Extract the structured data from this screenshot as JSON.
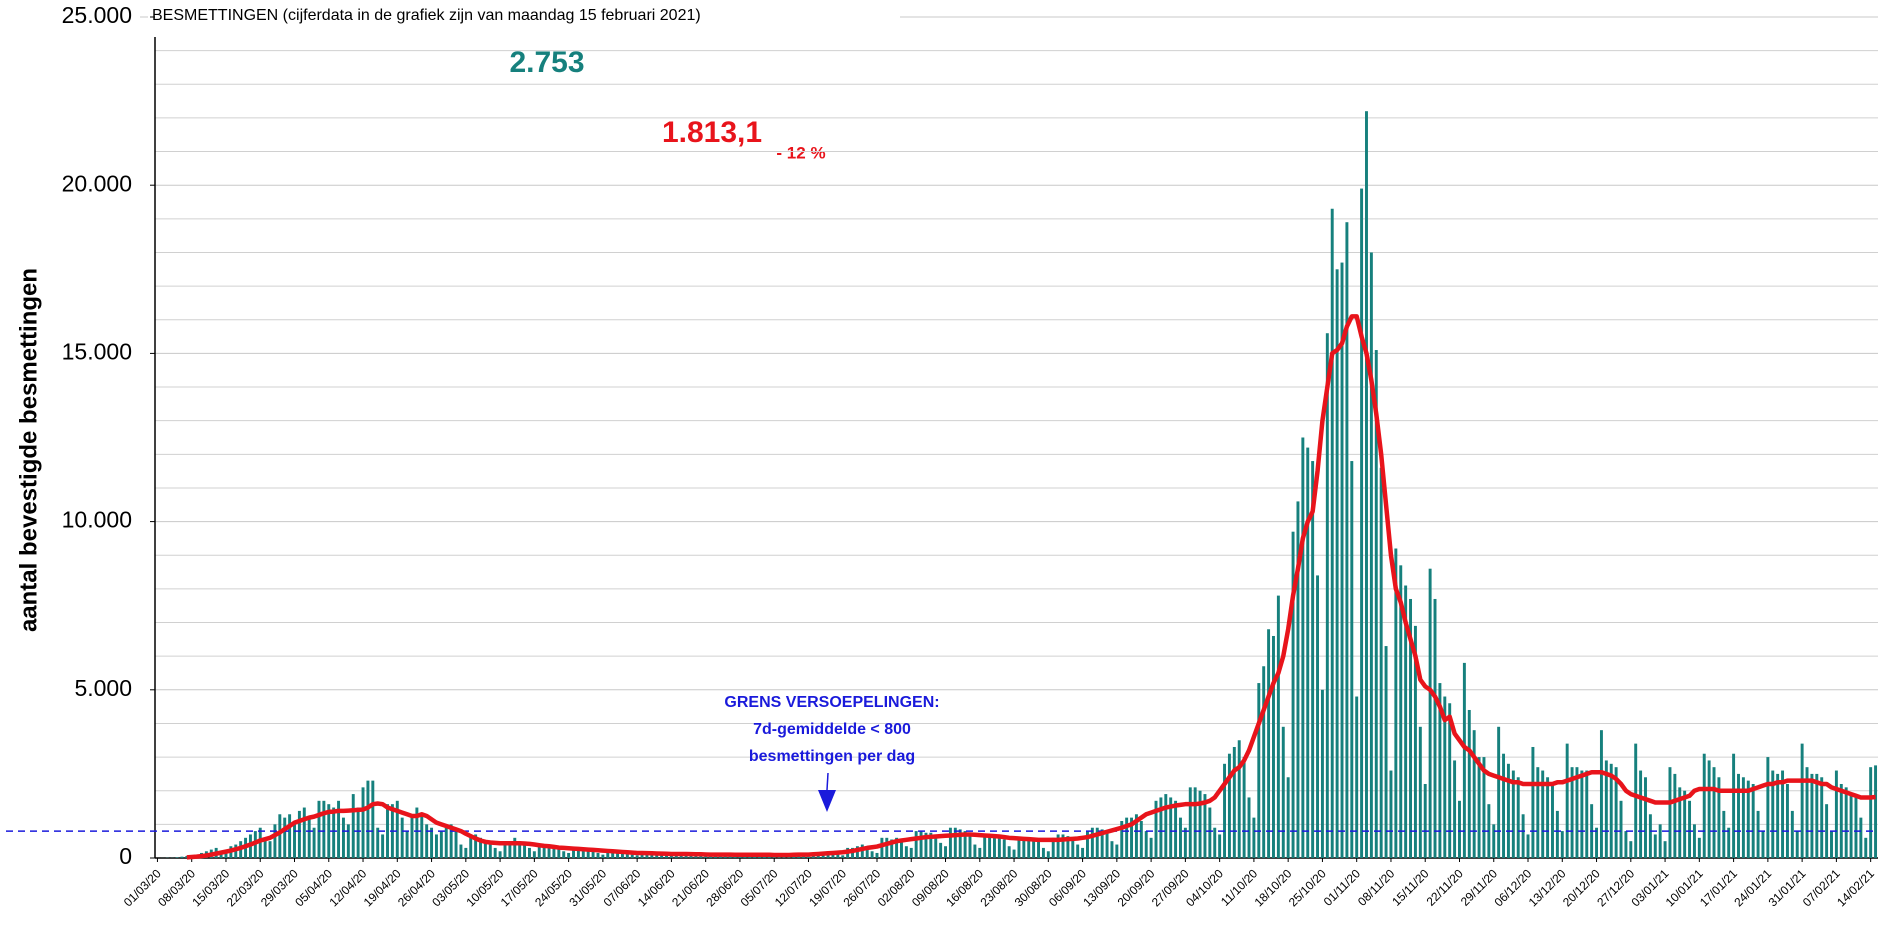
{
  "chart_data": {
    "type": "bar",
    "title": "BESMETTINGEN (cijferdata in de grafiek zijn van maandag 15 februari 2021)",
    "y_label": "aantal bevestigde besmettingen",
    "ylim": [
      0,
      25000
    ],
    "yticks": [
      0,
      {
        "value": 5000,
        "label": "5.000"
      },
      {
        "value": 10000,
        "label": "10.000"
      },
      {
        "value": 15000,
        "label": "15.000"
      },
      {
        "value": 20000,
        "label": "20.000"
      },
      {
        "value": 25000,
        "label": "25.000"
      }
    ],
    "y_minor_ticks": [
      1000,
      2000,
      3000,
      4000,
      6000,
      7000,
      8000,
      9000,
      11000,
      12000,
      13000,
      14000,
      16000,
      17000,
      18000,
      19000,
      21000,
      22000,
      23000,
      24000
    ],
    "grid": true,
    "highlights": {
      "cases": "2.753",
      "average": "1.813,1",
      "change": "- 12 %"
    },
    "threshold": {
      "value": 800,
      "color": "#1a1adb",
      "label": [
        "GRENS VERSOEPELINGEN:",
        "7d-gemiddelde < 800",
        "besmettingen per dag"
      ]
    },
    "categories": [
      "01/03/20",
      null,
      null,
      null,
      null,
      null,
      null,
      "08/03/20",
      null,
      null,
      null,
      null,
      null,
      null,
      "15/03/20",
      null,
      null,
      null,
      null,
      null,
      null,
      "22/03/20",
      null,
      null,
      null,
      null,
      null,
      null,
      "29/03/20",
      null,
      null,
      null,
      null,
      null,
      null,
      "05/04/20",
      null,
      null,
      null,
      null,
      null,
      null,
      "12/04/20",
      null,
      null,
      null,
      null,
      null,
      null,
      "19/04/20",
      null,
      null,
      null,
      null,
      null,
      null,
      "26/04/20",
      null,
      null,
      null,
      null,
      null,
      null,
      "03/05/20",
      null,
      null,
      null,
      null,
      null,
      null,
      "10/05/20",
      null,
      null,
      null,
      null,
      null,
      null,
      "17/05/20",
      null,
      null,
      null,
      null,
      null,
      null,
      "24/05/20",
      null,
      null,
      null,
      null,
      null,
      null,
      "31/05/20",
      null,
      null,
      null,
      null,
      null,
      null,
      "07/06/20",
      null,
      null,
      null,
      null,
      null,
      null,
      "14/06/20",
      null,
      null,
      null,
      null,
      null,
      null,
      "21/06/20",
      null,
      null,
      null,
      null,
      null,
      null,
      "28/06/20",
      null,
      null,
      null,
      null,
      null,
      null,
      "05/07/20",
      null,
      null,
      null,
      null,
      null,
      null,
      "12/07/20",
      null,
      null,
      null,
      null,
      null,
      null,
      "19/07/20",
      null,
      null,
      null,
      null,
      null,
      null,
      "26/07/20",
      null,
      null,
      null,
      null,
      null,
      null,
      "02/08/20",
      null,
      null,
      null,
      null,
      null,
      null,
      "09/08/20",
      null,
      null,
      null,
      null,
      null,
      null,
      "16/08/20",
      null,
      null,
      null,
      null,
      null,
      null,
      "23/08/20",
      null,
      null,
      null,
      null,
      null,
      null,
      "30/08/20",
      null,
      null,
      null,
      null,
      null,
      null,
      "06/09/20",
      null,
      null,
      null,
      null,
      null,
      null,
      "13/09/20",
      null,
      null,
      null,
      null,
      null,
      null,
      "20/09/20",
      null,
      null,
      null,
      null,
      null,
      null,
      "27/09/20",
      null,
      null,
      null,
      null,
      null,
      null,
      "04/10/20",
      null,
      null,
      null,
      null,
      null,
      null,
      "11/10/20",
      null,
      null,
      null,
      null,
      null,
      null,
      "18/10/20",
      null,
      null,
      null,
      null,
      null,
      null,
      "25/10/20",
      null,
      null,
      null,
      null,
      null,
      null,
      "01/11/20",
      null,
      null,
      null,
      null,
      null,
      null,
      "08/11/20",
      null,
      null,
      null,
      null,
      null,
      null,
      "15/11/20",
      null,
      null,
      null,
      null,
      null,
      null,
      "22/11/20",
      null,
      null,
      null,
      null,
      null,
      null,
      "29/11/20",
      null,
      null,
      null,
      null,
      null,
      null,
      "06/12/20",
      null,
      null,
      null,
      null,
      null,
      null,
      "13/12/20",
      null,
      null,
      null,
      null,
      null,
      null,
      "20/12/20",
      null,
      null,
      null,
      null,
      null,
      null,
      "27/12/20",
      null,
      null,
      null,
      null,
      null,
      null,
      "03/01/21",
      null,
      null,
      null,
      null,
      null,
      null,
      "10/01/21",
      null,
      null,
      null,
      null,
      null,
      null,
      "17/01/21",
      null,
      null,
      null,
      null,
      null,
      null,
      "24/01/21",
      null,
      null,
      null,
      null,
      null,
      null,
      "31/01/21",
      null,
      null,
      null,
      null,
      null,
      null,
      "07/02/21",
      null,
      null,
      null,
      null,
      null,
      null,
      "14/02/21",
      null
    ],
    "series": [
      {
        "type": "bar",
        "color": "#16807d",
        "values": [
          0,
          2,
          8,
          5,
          20,
          40,
          60,
          80,
          100,
          150,
          200,
          250,
          300,
          200,
          180,
          350,
          400,
          500,
          600,
          700,
          800,
          900,
          600,
          500,
          1000,
          1300,
          1200,
          1300,
          1100,
          1400,
          1500,
          1200,
          900,
          1700,
          1700,
          1600,
          1500,
          1700,
          1200,
          1000,
          1900,
          1500,
          2100,
          2300,
          2300,
          900,
          700,
          1600,
          1600,
          1700,
          1200,
          800,
          1200,
          1500,
          1300,
          1000,
          900,
          700,
          800,
          1000,
          1000,
          800,
          400,
          300,
          700,
          700,
          600,
          500,
          400,
          300,
          200,
          500,
          500,
          600,
          500,
          400,
          300,
          200,
          400,
          400,
          400,
          300,
          300,
          200,
          150,
          300,
          300,
          300,
          250,
          200,
          150,
          100,
          250,
          250,
          200,
          200,
          150,
          100,
          80,
          200,
          200,
          150,
          150,
          120,
          80,
          60,
          150,
          150,
          130,
          130,
          100,
          70,
          50,
          120,
          120,
          110,
          110,
          90,
          60,
          40,
          100,
          100,
          100,
          100,
          90,
          60,
          40,
          120,
          120,
          120,
          110,
          90,
          60,
          40,
          150,
          150,
          150,
          200,
          180,
          120,
          80,
          300,
          300,
          350,
          400,
          350,
          200,
          150,
          600,
          600,
          550,
          600,
          500,
          350,
          300,
          800,
          800,
          750,
          750,
          700,
          450,
          350,
          900,
          900,
          850,
          800,
          700,
          400,
          300,
          700,
          700,
          650,
          600,
          550,
          350,
          250,
          600,
          600,
          600,
          550,
          500,
          300,
          200,
          600,
          700,
          700,
          650,
          600,
          400,
          300,
          800,
          900,
          900,
          850,
          800,
          500,
          400,
          1100,
          1200,
          1200,
          1300,
          1100,
          800,
          600,
          1700,
          1800,
          1900,
          1800,
          1700,
          1200,
          900,
          2100,
          2100,
          2000,
          1900,
          1500,
          900,
          700,
          2800,
          3100,
          3300,
          3500,
          3000,
          1800,
          1200,
          5200,
          5700,
          6800,
          6600,
          7800,
          3900,
          2400,
          9700,
          10600,
          12500,
          12200,
          11800,
          8400,
          5000,
          15600,
          19300,
          17500,
          17700,
          18900,
          11800,
          4800,
          19900,
          22200,
          18000,
          15100,
          11600,
          6300,
          2600,
          9200,
          8700,
          8100,
          7700,
          6900,
          3900,
          2200,
          8600,
          7700,
          5200,
          4800,
          4600,
          2900,
          1700,
          5800,
          4400,
          3800,
          3000,
          3000,
          1600,
          1000,
          3900,
          3100,
          2800,
          2600,
          2400,
          1300,
          700,
          3300,
          2700,
          2600,
          2400,
          2200,
          1400,
          800,
          3400,
          2700,
          2700,
          2600,
          2600,
          1600,
          900,
          3800,
          2900,
          2800,
          2700,
          1700,
          800,
          500,
          3400,
          2600,
          2400,
          1300,
          700,
          1000,
          500,
          2700,
          2500,
          2100,
          2000,
          1700,
          1000,
          600,
          3100,
          2900,
          2700,
          2400,
          1400,
          900,
          3100,
          2500,
          2400,
          2300,
          2200,
          1400,
          800,
          3000,
          2600,
          2500,
          2600,
          2200,
          1400,
          800,
          3400,
          2700,
          2500,
          2500,
          2400,
          1600,
          800,
          2600,
          2200,
          2100,
          1900,
          1800,
          1200,
          600,
          2700,
          2753
        ]
      },
      {
        "type": "line",
        "color": "#e8141b",
        "values": [
          null,
          null,
          null,
          null,
          null,
          null,
          20,
          30,
          40,
          55,
          75,
          100,
          130,
          160,
          190,
          220,
          260,
          300,
          350,
          400,
          460,
          520,
          560,
          600,
          680,
          760,
          860,
          950,
          1050,
          1100,
          1150,
          1200,
          1230,
          1280,
          1330,
          1370,
          1380,
          1400,
          1400,
          1410,
          1420,
          1430,
          1440,
          1500,
          1600,
          1620,
          1600,
          1500,
          1450,
          1400,
          1350,
          1300,
          1250,
          1250,
          1300,
          1250,
          1150,
          1050,
          1000,
          950,
          900,
          850,
          800,
          720,
          650,
          580,
          520,
          480,
          460,
          450,
          440,
          440,
          440,
          440,
          440,
          430,
          420,
          400,
          380,
          360,
          350,
          330,
          310,
          300,
          290,
          280,
          270,
          260,
          250,
          240,
          230,
          220,
          210,
          200,
          190,
          180,
          170,
          160,
          150,
          150,
          145,
          140,
          135,
          130,
          125,
          120,
          120,
          120,
          120,
          115,
          110,
          110,
          105,
          100,
          100,
          100,
          100,
          100,
          95,
          95,
          95,
          95,
          95,
          95,
          95,
          95,
          90,
          90,
          90,
          90,
          95,
          100,
          100,
          100,
          110,
          120,
          130,
          140,
          150,
          160,
          170,
          190,
          210,
          240,
          270,
          300,
          320,
          340,
          380,
          420,
          460,
          500,
          520,
          540,
          560,
          580,
          600,
          620,
          630,
          640,
          650,
          660,
          670,
          680,
          690,
          700,
          700,
          690,
          680,
          670,
          660,
          650,
          640,
          620,
          600,
          590,
          580,
          570,
          560,
          550,
          540,
          540,
          540,
          540,
          540,
          550,
          560,
          570,
          580,
          600,
          620,
          660,
          700,
          740,
          780,
          820,
          860,
          900,
          950,
          1000,
          1100,
          1200,
          1300,
          1350,
          1400,
          1450,
          1500,
          1530,
          1560,
          1580,
          1600,
          1600,
          1600,
          1620,
          1650,
          1700,
          1800,
          2000,
          2200,
          2400,
          2600,
          2700,
          2900,
          3200,
          3600,
          4000,
          4400,
          4800,
          5200,
          5500,
          6000,
          6800,
          7800,
          8600,
          9500,
          10000,
          10300,
          11500,
          13000,
          14000,
          15000,
          15100,
          15300,
          15800,
          16100,
          16100,
          15500,
          15000,
          14200,
          13200,
          12000,
          10500,
          9000,
          8000,
          7600,
          7000,
          6500,
          6000,
          5300,
          5100,
          5000,
          4800,
          4500,
          4100,
          4200,
          3700,
          3500,
          3300,
          3200,
          3000,
          2800,
          2600,
          2500,
          2450,
          2400,
          2350,
          2300,
          2250,
          2250,
          2200,
          2200,
          2200,
          2200,
          2200,
          2200,
          2200,
          2250,
          2250,
          2300,
          2350,
          2400,
          2450,
          2500,
          2550,
          2550,
          2550,
          2500,
          2450,
          2350,
          2200,
          2000,
          1900,
          1850,
          1800,
          1750,
          1700,
          1650,
          1650,
          1650,
          1650,
          1700,
          1750,
          1800,
          1850,
          2000,
          2050,
          2050,
          2050,
          2050,
          2000,
          2000,
          2000,
          2000,
          2000,
          2000,
          2000,
          2050,
          2100,
          2150,
          2200,
          2200,
          2250,
          2250,
          2300,
          2300,
          2300,
          2300,
          2300,
          2300,
          2250,
          2200,
          2200,
          2100,
          2050,
          2000,
          1950,
          1900,
          1850,
          1800,
          1800,
          1800,
          1813.1
        ]
      }
    ]
  }
}
